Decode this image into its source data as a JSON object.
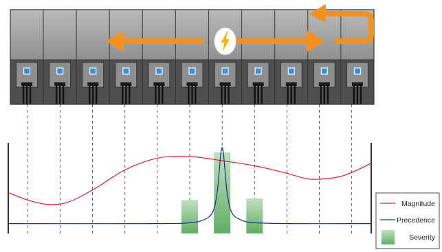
{
  "legend": {
    "magnitude_label": "Magnitude",
    "precedence_label": "Precedence",
    "severity_label": "Severity"
  },
  "colors": {
    "magnitude": "#dd2222",
    "precedence": "#1a2d8c",
    "severity": "#8cc98c",
    "arrow": "#f5921e",
    "bolt": "#f4b400",
    "led": "#3a8fd6"
  },
  "icons": {
    "center": "lightning-bolt-icon",
    "arrows": "propagation-arrow-icon"
  },
  "modules": {
    "count": 11,
    "center_module_index": 6
  },
  "chart_data": {
    "type": "line",
    "x": [
      0,
      1,
      2,
      3,
      4,
      5,
      6,
      7,
      8,
      9,
      10
    ],
    "xlim": [
      -0.6,
      10.6
    ],
    "ylim": [
      0,
      1
    ],
    "title": "",
    "xlabel": "",
    "ylabel": "",
    "series": [
      {
        "name": "Magnitude",
        "kind": "line",
        "x": [
          -0.6,
          0,
          0.6,
          1.2,
          2,
          3,
          4,
          5,
          6,
          7,
          8,
          8.7,
          9.5,
          10,
          10.6
        ],
        "values": [
          0.39,
          0.3,
          0.25,
          0.27,
          0.42,
          0.66,
          0.8,
          0.82,
          0.77,
          0.71,
          0.62,
          0.55,
          0.57,
          0.63,
          0.74
        ]
      },
      {
        "name": "Precedence",
        "kind": "line",
        "x": [
          -0.6,
          4,
          5,
          5.4,
          5.7,
          5.85,
          6,
          6.15,
          6.3,
          6.6,
          7,
          8,
          10.6
        ],
        "values": [
          0.02,
          0.02,
          0.03,
          0.06,
          0.15,
          0.4,
          0.93,
          0.4,
          0.15,
          0.06,
          0.03,
          0.02,
          0.02
        ]
      },
      {
        "name": "Severity",
        "kind": "bar",
        "x": [
          5,
          6,
          7
        ],
        "values": [
          0.3,
          0.87,
          0.32
        ]
      }
    ],
    "grid": "vertical dashed at each module",
    "legend_position": "bottom-right outside plot"
  }
}
